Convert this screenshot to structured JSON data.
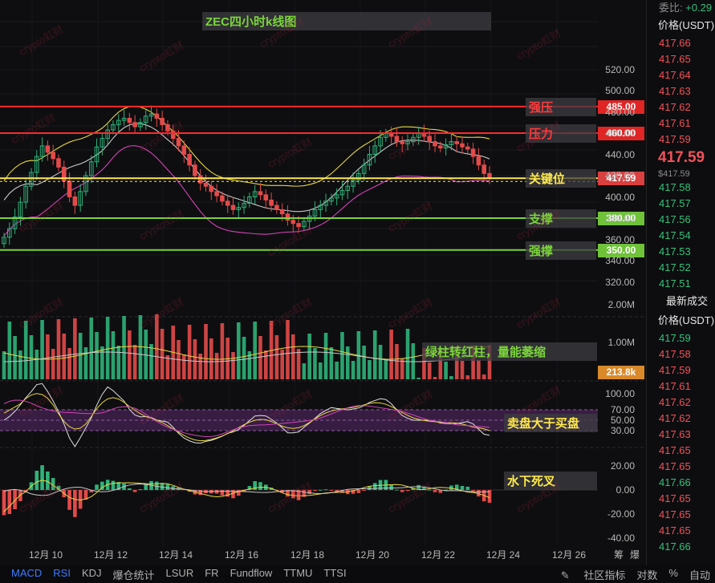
{
  "title": "ZEC四小时k线图",
  "watermark": "crypto虹财",
  "levels": [
    {
      "label": "强压",
      "price": 485,
      "tag": "485.00",
      "color": "#ff2a2a",
      "label_color": "red"
    },
    {
      "label": "压力",
      "price": 460,
      "tag": "460.00",
      "color": "#ff2a2a",
      "label_color": "red"
    },
    {
      "label": "关键位",
      "price": 417.59,
      "tag": "417.59",
      "color": "#ffe94a",
      "label_color": "yellow"
    },
    {
      "label": "支撑",
      "price": 380,
      "tag": "380.00",
      "color": "#7bd43a",
      "label_color": "green"
    },
    {
      "label": "强撑",
      "price": 350,
      "tag": "350.00",
      "color": "#7bd43a",
      "label_color": "green"
    }
  ],
  "annotations": {
    "volume": "绿柱转红柱，量能萎缩",
    "rsi": "卖盘大于买盘",
    "macd": "水下死叉"
  },
  "price_axis": [
    "520.00",
    "500.00",
    "480.00",
    "460.00",
    "440.00",
    "420.00",
    "400.00",
    "380.00",
    "360.00",
    "340.00",
    "320.00"
  ],
  "volume_axis": [
    "2.00M",
    "1.00M"
  ],
  "volume_tag": "213.8k",
  "rsi_axis": [
    "100.00",
    "70.00",
    "50.00",
    "30.00"
  ],
  "macd_axis": [
    "20.00",
    "0.00",
    "-20.00",
    "-40.00"
  ],
  "dates": [
    "12月 10",
    "12月 12",
    "12月 14",
    "12月 16",
    "12月 18",
    "12月 20",
    "12月 22",
    "12月 24",
    "12月 26"
  ],
  "corner_labels": [
    "筹",
    "爆"
  ],
  "bottom_tabs": [
    {
      "label": "MACD",
      "active": true
    },
    {
      "label": "RSI",
      "active": true
    },
    {
      "label": "KDJ",
      "active": false
    },
    {
      "label": "爆仓统计",
      "active": false
    },
    {
      "label": "LSUR",
      "active": false
    },
    {
      "label": "FR",
      "active": false
    },
    {
      "label": "Fundflow",
      "active": false
    },
    {
      "label": "TTMU",
      "active": false
    },
    {
      "label": "TTSI",
      "active": false
    }
  ],
  "bottom_right": [
    "社区指标",
    "对数",
    "%",
    "自动"
  ],
  "right_panel": {
    "ratio_label": "委比:",
    "ratio_value": "+0.29",
    "header": "价格(USDT)",
    "asks": [
      "417.66",
      "417.65",
      "417.64",
      "417.63",
      "417.62",
      "417.61",
      "417.59"
    ],
    "last_price": "417.59",
    "last_price_sub": "$417.59",
    "bids": [
      "417.58",
      "417.57",
      "417.56",
      "417.54",
      "417.53",
      "417.52",
      "417.51"
    ],
    "trades_title": "最新成交",
    "trades_header": "价格(USDT)",
    "trades": [
      {
        "p": "417.59",
        "side": "buy"
      },
      {
        "p": "417.58",
        "side": "sell"
      },
      {
        "p": "417.59",
        "side": "sell"
      },
      {
        "p": "417.61",
        "side": "sell"
      },
      {
        "p": "417.62",
        "side": "sell"
      },
      {
        "p": "417.62",
        "side": "sell"
      },
      {
        "p": "417.63",
        "side": "sell"
      },
      {
        "p": "417.65",
        "side": "sell"
      },
      {
        "p": "417.65",
        "side": "sell"
      },
      {
        "p": "417.66",
        "side": "buy"
      },
      {
        "p": "417.65",
        "side": "sell"
      },
      {
        "p": "417.65",
        "side": "sell"
      },
      {
        "p": "417.65",
        "side": "sell"
      },
      {
        "p": "417.66",
        "side": "buy"
      }
    ]
  },
  "chart_data": [
    {
      "type": "candlestick",
      "title": "ZEC四小时k线图",
      "x_range": [
        "12月 9",
        "12月 23"
      ],
      "ylim": [
        310,
        530
      ],
      "close_series": [
        362,
        370,
        381,
        395,
        410,
        423,
        438,
        448,
        442,
        436,
        428,
        415,
        400,
        392,
        405,
        420,
        433,
        447,
        455,
        463,
        468,
        472,
        474,
        470,
        466,
        470,
        476,
        478,
        474,
        468,
        462,
        455,
        448,
        440,
        430,
        420,
        413,
        410,
        405,
        401,
        396,
        392,
        388,
        390,
        394,
        400,
        405,
        402,
        397,
        392,
        388,
        384,
        378,
        375,
        372,
        377,
        382,
        388,
        392,
        396,
        399,
        402,
        406,
        410,
        416,
        422,
        430,
        440,
        448,
        456,
        460,
        457,
        452,
        450,
        452,
        456,
        460,
        457,
        452,
        448,
        446,
        449,
        452,
        450,
        447,
        445,
        438,
        430,
        422,
        418
      ],
      "last": 417.59
    },
    {
      "type": "bar",
      "name": "volume",
      "ylim": [
        0,
        2000000
      ],
      "last": "213.8k"
    },
    {
      "type": "line",
      "name": "RSI",
      "ylim": [
        0,
        100
      ],
      "bands": [
        30,
        50,
        70
      ]
    },
    {
      "type": "bar",
      "name": "MACD",
      "ylim": [
        -40,
        20
      ]
    }
  ]
}
